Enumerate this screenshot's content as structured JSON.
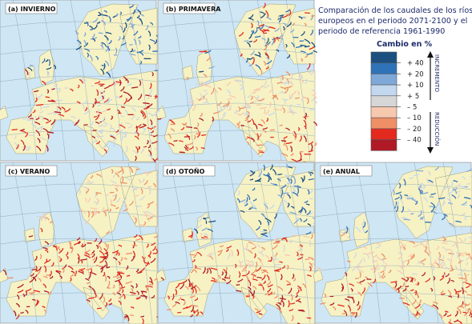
{
  "header": {
    "title_lines": [
      "Comparación de los caudales de los ríos",
      "europeos en el periodo 2071-2100 y el",
      "periodo de referencia 1961-1990"
    ]
  },
  "legend": {
    "title": "Cambio en %",
    "colors": [
      "#1b4f7f",
      "#2f72b8",
      "#7fa8d9",
      "#c3d8ee",
      "#d6d6d6",
      "#f6c8ae",
      "#ee8f66",
      "#e4291f",
      "#b01a27"
    ],
    "labels": [
      "+ 40",
      "+ 20",
      "+ 10",
      "+ 5",
      "– 5",
      "– 10",
      "– 20",
      "– 40"
    ],
    "increase": "INCREMENTO",
    "decrease": "REDUCCIÓN"
  },
  "panels": [
    {
      "label": "(a) INVIERNO"
    },
    {
      "label": "(b) PRIMAVERA"
    },
    {
      "label": "(c) VERANO"
    },
    {
      "label": "(d) OTOÑO"
    },
    {
      "label": "(e) ANUAL"
    }
  ]
}
